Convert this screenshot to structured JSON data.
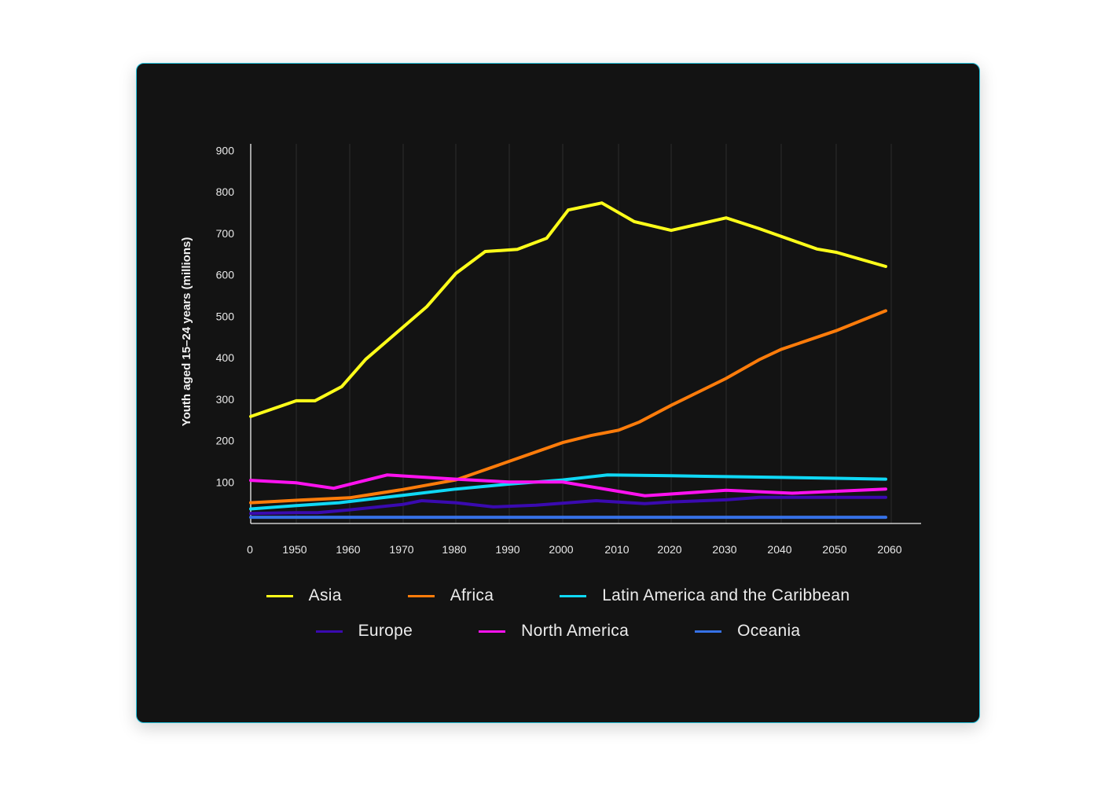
{
  "chart_data": {
    "type": "line",
    "title": "",
    "xlabel": "",
    "ylabel": "Youth aged 15–24 years (millions)",
    "ylim": [
      0,
      900
    ],
    "yticks": [
      100,
      200,
      300,
      400,
      500,
      600,
      700,
      800,
      900
    ],
    "xtick_labels": [
      "0",
      "1950",
      "1960",
      "1970",
      "1980",
      "1990",
      "2000",
      "2010",
      "2020",
      "2030",
      "2040",
      "2050",
      "2060"
    ],
    "xtick_years": [
      1941,
      1950,
      1960,
      1970,
      1980,
      1990,
      2000,
      2010,
      2020,
      2030,
      2040,
      2050,
      2060
    ],
    "grid": "vertical",
    "legend_position": "bottom",
    "series": [
      {
        "name": "Asia",
        "color": "#ffff1a",
        "x": [
          1941,
          1950,
          1953.5,
          1958.5,
          1963,
          1974.5,
          1980,
          1985.5,
          1991.5,
          1997,
          2001,
          2007,
          2013,
          2020,
          2030,
          2036,
          2046.5,
          2050,
          2059
        ],
        "values": [
          258,
          296,
          296,
          330,
          396,
          523,
          603,
          656,
          661,
          688,
          756,
          773,
          728,
          707,
          737,
          711,
          662,
          654,
          620
        ]
      },
      {
        "name": "Africa",
        "color": "#ff7c0a",
        "x": [
          1941,
          1950,
          1960,
          1963,
          1970,
          1980,
          1990,
          2000,
          2005,
          2010,
          2014,
          2020,
          2030,
          2036,
          2040,
          2050,
          2059
        ],
        "values": [
          50,
          56,
          62,
          68,
          82,
          105,
          150,
          195,
          212,
          225,
          245,
          285,
          350,
          395,
          420,
          465,
          513
        ]
      },
      {
        "name": "Latin America and the Caribbean",
        "color": "#0fd8f5",
        "x": [
          1941,
          1950,
          1958,
          1970,
          1980,
          1990,
          2000,
          2008,
          2020,
          2030,
          2040,
          2050,
          2059
        ],
        "values": [
          35,
          43,
          50,
          68,
          83,
          95,
          105,
          117,
          115,
          113,
          111,
          109,
          107
        ]
      },
      {
        "name": "Europe",
        "color": "#3a0ab0",
        "x": [
          1941,
          1950,
          1954,
          1960,
          1970,
          1973.5,
          1980,
          1987,
          1995,
          2006,
          2015,
          2020,
          2030,
          2036,
          2050,
          2059
        ],
        "values": [
          24,
          26,
          26,
          33,
          46,
          55,
          50,
          40,
          44,
          55,
          48,
          52,
          57,
          63,
          63,
          63
        ]
      },
      {
        "name": "North America",
        "color": "#ff12f0",
        "x": [
          1941,
          1950,
          1957,
          1967,
          1980,
          1990,
          2000,
          2015,
          2030,
          2042,
          2059
        ],
        "values": [
          104,
          98,
          85,
          117,
          107,
          100,
          100,
          67,
          80,
          73,
          83
        ]
      },
      {
        "name": "Oceania",
        "color": "#3671e6",
        "x": [
          1941,
          2059
        ],
        "values": [
          15,
          15
        ]
      }
    ]
  },
  "legend": {
    "row1": [
      "Asia",
      "Africa",
      "Latin America and the Caribbean"
    ],
    "row2": [
      "Europe",
      "North America",
      "Oceania"
    ]
  }
}
